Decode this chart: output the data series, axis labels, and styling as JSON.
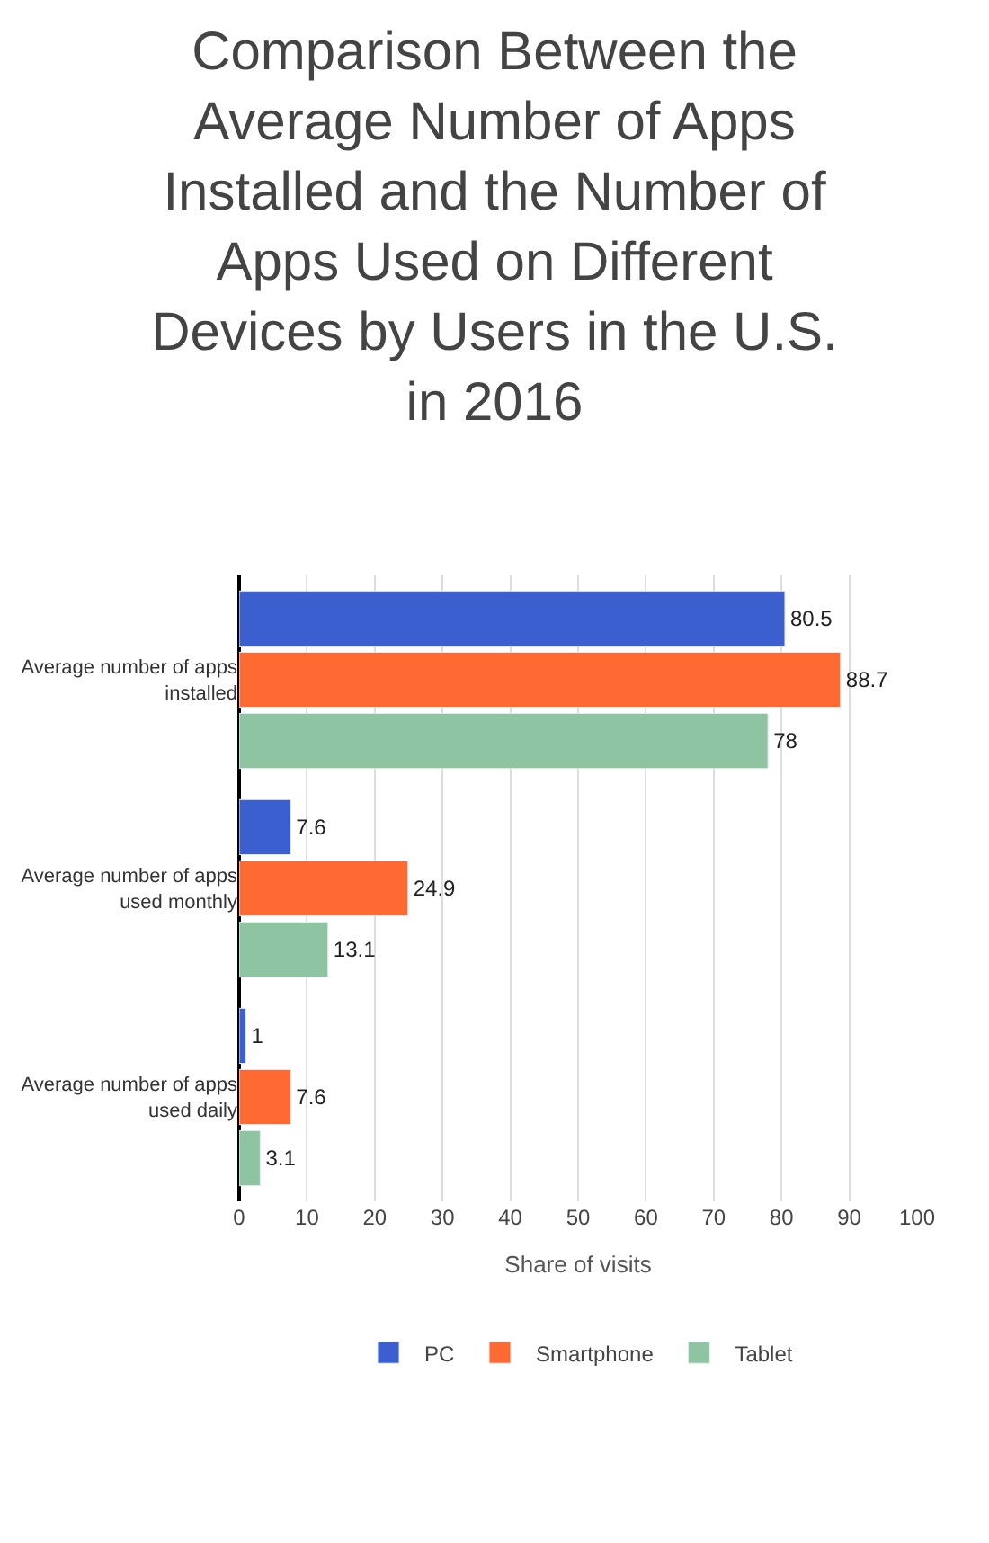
{
  "chart_data": {
    "type": "bar",
    "orientation": "horizontal",
    "title": "Comparison Between the Average Number of Apps Installed and the Number of Apps Used on Different Devices by Users in the U.S. in 2016",
    "xlabel": "Share of visits",
    "categories": [
      "Average number of apps installed",
      "Average number of apps used monthly",
      "Average number of apps used daily"
    ],
    "series": [
      {
        "name": "PC",
        "color": "#3b5fcf",
        "values": [
          80.5,
          7.6,
          1
        ]
      },
      {
        "name": "Smartphone",
        "color": "#ff6a33",
        "values": [
          88.7,
          24.9,
          7.6
        ]
      },
      {
        "name": "Tablet",
        "color": "#8fc4a3",
        "values": [
          78,
          13.1,
          3.1
        ]
      }
    ],
    "xlim": [
      0,
      100
    ],
    "xticks": [
      0,
      10,
      20,
      30,
      40,
      50,
      60,
      70,
      80,
      90,
      100
    ],
    "grid": "x",
    "legend": "bottom",
    "data_labels": true
  }
}
